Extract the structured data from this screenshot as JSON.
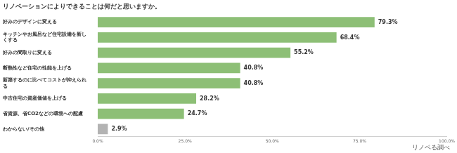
{
  "chart_data": {
    "type": "bar",
    "orientation": "horizontal",
    "title": "リノベーションによりできることは何だと思いますか。",
    "categories": [
      "好みのデザインに変える",
      "キッチンやお風呂など住宅設備を新しくする",
      "好みの間取りに変える",
      "断熱性など住宅の性能を上げる",
      "新築するのに比べてコストが抑えられる",
      "中古住宅の資産価値を上げる",
      "省資源、省CO2などの環境への配慮",
      "わからない/その他"
    ],
    "values": [
      79.3,
      68.4,
      55.2,
      40.8,
      40.8,
      28.2,
      24.7,
      2.9
    ],
    "value_labels": [
      "79.3%",
      "68.4%",
      "55.2%",
      "40.8%",
      "40.8%",
      "28.2%",
      "24.7%",
      "2.9%"
    ],
    "data_labels": true,
    "colors": [
      "#8dbf76",
      "#8dbf76",
      "#8dbf76",
      "#8dbf76",
      "#8dbf76",
      "#8dbf76",
      "#8dbf76",
      "#b3b3b3"
    ],
    "xlim": [
      0,
      100
    ],
    "xticks": [
      {
        "value": 0,
        "label": "0.0%"
      },
      {
        "value": 25,
        "label": "25.0%"
      },
      {
        "value": 50,
        "label": "50.0%"
      },
      {
        "value": 75,
        "label": "75.0%"
      },
      {
        "value": 100,
        "label": "100.0%"
      }
    ],
    "grid": false,
    "annotations": [
      "リノベる調べ"
    ]
  }
}
